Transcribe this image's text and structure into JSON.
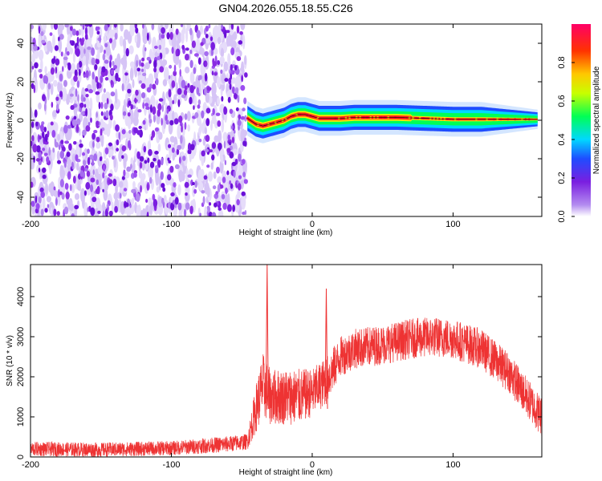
{
  "title": "GN04.2026.055.18.55.C26",
  "chart_data": [
    {
      "type": "heatmap",
      "xlabel": "Height of straight line (km)",
      "ylabel": "Frequency (Hz)",
      "xlim": [
        -200,
        163
      ],
      "ylim": [
        -50,
        50
      ],
      "xticks": [
        -200,
        -100,
        0,
        100
      ],
      "yticks": [
        -40,
        -20,
        0,
        20,
        40
      ],
      "grid": false,
      "colorbar": {
        "label": "Normalized spectral amplitude",
        "range": [
          0,
          1
        ],
        "ticks": [
          "0.0",
          "0.2",
          "0.4",
          "0.6",
          "0.8"
        ]
      },
      "noise_region_x": [
        -200,
        -47
      ],
      "ridge": {
        "x": [
          -46,
          -40,
          -35,
          -30,
          -25,
          -20,
          -15,
          -10,
          -5,
          0,
          5,
          10,
          20,
          30,
          40,
          60,
          80,
          100,
          120,
          140,
          160
        ],
        "y": [
          1,
          -2,
          -3,
          -2,
          -1,
          0,
          2,
          3,
          3,
          2,
          1,
          1,
          1,
          1.5,
          1.5,
          1.5,
          1,
          0.5,
          0.5,
          0.5,
          0.5
        ]
      }
    },
    {
      "type": "line",
      "xlabel": "Height of straight line (km)",
      "ylabel": "SNR (10 * v/v)",
      "xlim": [
        -200,
        163
      ],
      "ylim": [
        0,
        4800
      ],
      "xticks": [
        -200,
        -100,
        0,
        100
      ],
      "yticks": [
        0,
        1000,
        2000,
        3000,
        4000
      ],
      "grid": false,
      "color": "#ee3333",
      "envelope": {
        "x": [
          -200,
          -150,
          -100,
          -60,
          -46,
          -40,
          -35,
          -30,
          -20,
          -10,
          0,
          10,
          20,
          30,
          50,
          70,
          85,
          100,
          120,
          140,
          150,
          163
        ],
        "mean": [
          200,
          180,
          220,
          320,
          380,
          1200,
          1800,
          1500,
          1500,
          1500,
          1600,
          1900,
          2500,
          2700,
          2800,
          2950,
          3000,
          2950,
          2700,
          2100,
          1600,
          1000
        ],
        "spread": [
          180,
          180,
          180,
          200,
          200,
          600,
          800,
          700,
          700,
          700,
          600,
          600,
          500,
          500,
          500,
          500,
          500,
          500,
          500,
          500,
          500,
          500
        ]
      },
      "spikes": [
        {
          "x": -32,
          "y": 4800
        },
        {
          "x": 10,
          "y": 4200
        }
      ]
    }
  ]
}
